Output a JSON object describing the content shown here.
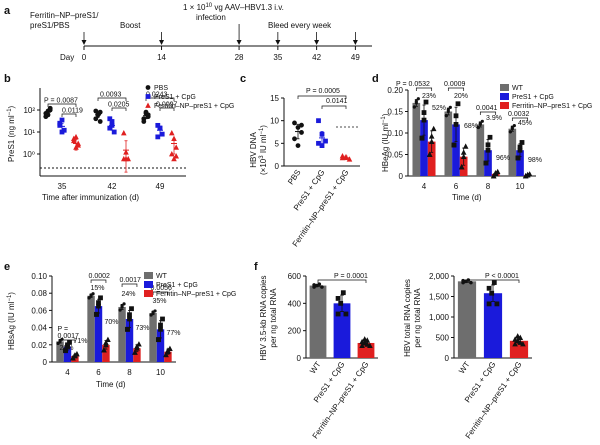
{
  "figure": {
    "panel_letters": [
      "a",
      "b",
      "c",
      "d",
      "e",
      "f"
    ]
  },
  "timeline": {
    "treatment": "Ferritin–NP–preS1/ preS1/PBS",
    "treatment_line1": "Ferritin–NP–preS1/",
    "treatment_line2": "preS1/PBS",
    "boost": "Boost",
    "infection_line1": "1 × 10",
    "infection_exp": "10",
    "infection_unit": " vg AAV–HBV1.3 i.v.",
    "infection_line2": "infection",
    "bleed": "Bleed every week",
    "day_label": "Day",
    "days": [
      "0",
      "14",
      "28",
      "35",
      "42",
      "49"
    ],
    "day_values": [
      0,
      14,
      28,
      35,
      42,
      49
    ]
  },
  "panel_b": {
    "ylabel": "PreS1 (ng ml",
    "ylabel_sup": "−1",
    "ylabel_end": ")",
    "xlabel": "Time after immunization (d)",
    "yticks": [
      "10⁰",
      "10¹",
      "10²"
    ],
    "categories": [
      "35",
      "42",
      "49"
    ],
    "legend": [
      "PBS",
      "PreS1 + CpG",
      "Ferritin–NP–preS1 + CpG"
    ],
    "pvalues": [
      {
        "text": "P = 0.0087"
      },
      {
        "text": "0.0119"
      },
      {
        "text": "0.0093"
      },
      {
        "text": "0.0205"
      },
      {
        "text": "0.0243"
      },
      {
        "text": "0.0097"
      }
    ]
  },
  "panel_c": {
    "ylabel": "HBV DNA",
    "ylabel2": "(×10",
    "ylabel2_exp": "3",
    "ylabel2_end": " IU ml",
    "ylabel2_sup": "−1",
    "ylabel2_close": ")",
    "yticks": [
      "0",
      "5",
      "10",
      "15"
    ],
    "categories": [
      "PBS",
      "PreS1 + CpG",
      "Ferritin–NP–preS1 + CpG"
    ],
    "pvalues": [
      "P = 0.0005",
      "0.0141"
    ]
  },
  "panel_d": {
    "ylabel": "HBeAg (IU ml",
    "ylabel_sup": "−1",
    "ylabel_end": ")",
    "xlabel": "Time (d)",
    "yticks": [
      "0",
      "0.05",
      "0.10",
      "0.15",
      "0.20"
    ],
    "categories": [
      "4",
      "6",
      "8",
      "10"
    ],
    "legend": [
      "WT",
      "PreS1 + CpG",
      "Ferritin–NP–preS1 + CpG"
    ],
    "pvalues": [
      "P = 0.0532",
      "0.0009",
      "0.0041",
      "0.0032"
    ],
    "pct": [
      "23%",
      "52%",
      "20%",
      "68%",
      "3.9%",
      "96%",
      "45%",
      "98%"
    ]
  },
  "panel_e": {
    "ylabel": "HBsAg (IU ml",
    "ylabel_sup": "−1",
    "ylabel_end": ")",
    "xlabel": "Time (d)",
    "yticks": [
      "0",
      "0.02",
      "0.04",
      "0.06",
      "0.08",
      "0.10"
    ],
    "categories": [
      "4",
      "6",
      "8",
      "10"
    ],
    "legend": [
      "WT",
      "PreS1 + CpG",
      "Ferritin–NP–preS1 + CpG"
    ],
    "pvalues": [
      "P =",
      "0.0017",
      "0.0002",
      "0.0017",
      "0.0056"
    ],
    "pct": [
      "26%",
      "71%",
      "15%",
      "70%",
      "24%",
      "73%",
      "35%",
      "77%"
    ]
  },
  "panel_f1": {
    "ylabel1": "HBV 3.5-kb RNA copies",
    "ylabel2": "per ng total RNA",
    "yticks": [
      "0",
      "200",
      "400",
      "600"
    ],
    "categories": [
      "WT",
      "PreS1 + CpG",
      "Ferritin–NP–preS1 + CpG"
    ],
    "pvalue": "P = 0.0001"
  },
  "panel_f2": {
    "ylabel1": "HBV total RNA copies",
    "ylabel2": "per ng total RNA",
    "yticks": [
      "0",
      "500",
      "1,000",
      "1,500",
      "2,000"
    ],
    "categories": [
      "WT",
      "PreS1 + CpG",
      "Ferritin–NP–preS1 + CpG"
    ],
    "pvalue": "P < 0.0001"
  },
  "colors": {
    "black": "#111111",
    "gray": "#6e6e6e",
    "blue": "#1a1adb",
    "red": "#e02020"
  },
  "chart_data": [
    {
      "id": "b",
      "type": "scatter",
      "scale": "log",
      "ylim": [
        0.1,
        1000
      ],
      "categories": [
        "35",
        "42",
        "49"
      ],
      "series": [
        {
          "name": "PBS",
          "color": "#111111",
          "marker": "circle",
          "mean": [
            80,
            60,
            55
          ],
          "sem": [
            20,
            15,
            15
          ],
          "points": [
            [
              50,
              90,
              120,
              70,
              60,
              100
            ],
            [
              40,
              70,
              30,
              90,
              60,
              80
            ],
            [
              40,
              70,
              60,
              30,
              80,
              50
            ]
          ]
        },
        {
          "name": "PreS1 + CpG",
          "color": "#1a1adb",
          "marker": "square",
          "mean": [
            18,
            20,
            12
          ],
          "sem": [
            6,
            8,
            5
          ],
          "points": [
            [
              20,
              35,
              12,
              25,
              10
            ],
            [
              40,
              30,
              10,
              15,
              20
            ],
            [
              20,
              15,
              8,
              6,
              15
            ]
          ]
        },
        {
          "name": "Ferritin–NP–preS1 + CpG",
          "color": "#e02020",
          "marker": "triangle",
          "mean": [
            3,
            1.5,
            3
          ],
          "sem": [
            1.5,
            2.5,
            2
          ],
          "points": [
            [
              5,
              2,
              3,
              4,
              6,
              2.5
            ],
            [
              9,
              0.6,
              0.6,
              0.6,
              1.2
            ],
            [
              9,
              5,
              2,
              1,
              0.6,
              0.8
            ]
          ]
        }
      ]
    },
    {
      "id": "c",
      "type": "scatter",
      "ylim": [
        0,
        15
      ],
      "categories": [
        "PBS",
        "PreS1 + CpG",
        "Ferritin–NP–preS1 + CpG"
      ],
      "series": [
        {
          "name": "PBS",
          "color": "#111111",
          "marker": "circle",
          "mean": 7.6,
          "sem": 1.6,
          "points": [
            9.5,
            8.5,
            7.4,
            6,
            4.5,
            9
          ]
        },
        {
          "name": "PreS1 + CpG",
          "color": "#1a1adb",
          "marker": "square",
          "mean": 6.2,
          "sem": 1.4,
          "points": [
            10,
            7,
            5.5,
            5,
            4.5
          ]
        },
        {
          "name": "Ferritin–NP–preS1 + CpG",
          "color": "#e02020",
          "marker": "triangle",
          "mean": 1.8,
          "sem": 0.4,
          "points": [
            2.2,
            1.9,
            1.5,
            1.8,
            2
          ]
        }
      ]
    },
    {
      "id": "d",
      "type": "bar",
      "ylim": [
        0,
        0.2
      ],
      "categories": [
        "4",
        "6",
        "8",
        "10"
      ],
      "series": [
        {
          "name": "WT",
          "color": "#6e6e6e",
          "values": [
            0.17,
            0.15,
            0.12,
            0.11
          ],
          "sem": [
            0.008,
            0.008,
            0.006,
            0.006
          ]
        },
        {
          "name": "PreS1 + CpG",
          "color": "#1a1adb",
          "values": [
            0.13,
            0.12,
            0.06,
            0.06
          ],
          "sem": [
            0.035,
            0.04,
            0.025,
            0.015
          ]
        },
        {
          "name": "Ferritin–NP–preS1 + CpG",
          "color": "#e02020",
          "values": [
            0.08,
            0.045,
            0.005,
            0.002
          ],
          "sem": [
            0.025,
            0.02,
            0.004,
            0.002
          ]
        }
      ]
    },
    {
      "id": "e",
      "type": "bar",
      "ylim": [
        0,
        0.1
      ],
      "categories": [
        "4",
        "6",
        "8",
        "10"
      ],
      "series": [
        {
          "name": "WT",
          "color": "#6e6e6e",
          "values": [
            0.024,
            0.077,
            0.064,
            0.057
          ],
          "sem": [
            0.002,
            0.002,
            0.003,
            0.002
          ]
        },
        {
          "name": "PreS1 + CpG",
          "color": "#1a1adb",
          "values": [
            0.018,
            0.065,
            0.05,
            0.038
          ],
          "sem": [
            0.004,
            0.008,
            0.01,
            0.01
          ]
        },
        {
          "name": "Ferritin–NP–preS1 + CpG",
          "color": "#e02020",
          "values": [
            0.007,
            0.02,
            0.016,
            0.012
          ],
          "sem": [
            0.002,
            0.005,
            0.004,
            0.003
          ]
        }
      ]
    },
    {
      "id": "f1",
      "type": "bar",
      "ylim": [
        0,
        600
      ],
      "categories": [
        "WT",
        "PreS1 + CpG",
        "Ferritin–NP–preS1 + CpG"
      ],
      "values": [
        530,
        400,
        110
      ],
      "sem": [
        8,
        60,
        15
      ],
      "colors": [
        "#6e6e6e",
        "#1a1adb",
        "#e02020"
      ]
    },
    {
      "id": "f2",
      "type": "bar",
      "ylim": [
        0,
        2000
      ],
      "categories": [
        "WT",
        "PreS1 + CpG",
        "Ferritin–NP–preS1 + CpG"
      ],
      "values": [
        1870,
        1580,
        420
      ],
      "sem": [
        25,
        200,
        60
      ],
      "colors": [
        "#6e6e6e",
        "#1a1adb",
        "#e02020"
      ]
    }
  ]
}
